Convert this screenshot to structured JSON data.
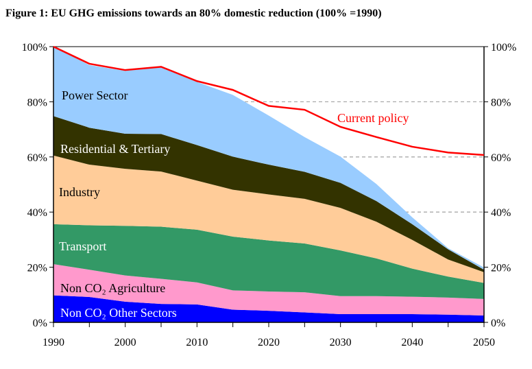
{
  "chart_data": {
    "type": "area",
    "stacked": true,
    "title": "Figure 1: EU GHG emissions towards an 80% domestic reduction (100% =1990)",
    "xlabel": "",
    "ylabel": "",
    "x": [
      1990,
      1995,
      2000,
      2005,
      2010,
      2015,
      2020,
      2025,
      2030,
      2035,
      2040,
      2045,
      2050
    ],
    "xticks": [
      "1990",
      "2000",
      "2010",
      "2020",
      "2030",
      "2040",
      "2050"
    ],
    "yticks": [
      "0%",
      "20%",
      "40%",
      "60%",
      "80%",
      "100%"
    ],
    "ylim": [
      0,
      100
    ],
    "xlim": [
      1990,
      2050
    ],
    "grid": "dashed horizontal at 40%, 60%, 80%",
    "legend": "inline labels",
    "series": [
      {
        "name": "Non CO₂ Other Sectors",
        "color": "#0000ff",
        "label_color": "#ffffff",
        "values": [
          9.8,
          9.2,
          7.5,
          6.7,
          6.5,
          4.6,
          4.2,
          3.6,
          3.0,
          3.0,
          3.0,
          2.8,
          2.5
        ]
      },
      {
        "name": "Non CO₂ Agriculture",
        "color": "#ff99cc",
        "label_color": "#000000",
        "values": [
          11.3,
          9.9,
          9.5,
          9.1,
          8.0,
          7.0,
          7.0,
          7.3,
          6.5,
          6.5,
          6.3,
          6.2,
          6.0
        ]
      },
      {
        "name": "Transport",
        "color": "#339966",
        "label_color": "#ffffff",
        "values": [
          14.5,
          16.1,
          18.0,
          18.9,
          19.1,
          19.5,
          18.5,
          17.7,
          16.6,
          13.7,
          10.2,
          7.6,
          5.8
        ]
      },
      {
        "name": "Industry",
        "color": "#ffcc99",
        "label_color": "#000000",
        "values": [
          24.9,
          22.0,
          20.7,
          20.0,
          17.8,
          17.0,
          16.7,
          16.2,
          15.4,
          13.3,
          10.4,
          6.2,
          3.9
        ]
      },
      {
        "name": "Residential & Tertiary",
        "color": "#333300",
        "label_color": "#ffffff",
        "values": [
          14.3,
          13.4,
          12.7,
          13.6,
          12.9,
          12.0,
          10.8,
          9.8,
          9.1,
          7.5,
          5.7,
          3.7,
          0.9
        ]
      },
      {
        "name": "Power Sector",
        "color": "#99ccff",
        "label_color": "#000000",
        "values": [
          25.2,
          22.7,
          22.8,
          24.2,
          22.9,
          22.4,
          17.8,
          12.6,
          9.5,
          6.2,
          2.5,
          0.4,
          0.8
        ]
      }
    ],
    "line": {
      "name": "Current policy",
      "color": "#ff0000",
      "values": [
        100,
        93.8,
        91.5,
        92.7,
        87.5,
        84.3,
        78.5,
        77.1,
        70.9,
        67.2,
        63.7,
        61.6,
        60.7
      ]
    }
  }
}
